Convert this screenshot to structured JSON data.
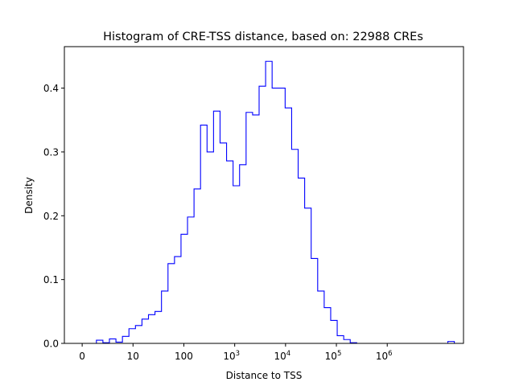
{
  "chart_data": {
    "type": "histogram",
    "title": "Histogram of CRE-TSS distance, based on: 22988 CREs",
    "xlabel": "Distance to TSS",
    "ylabel": "Density",
    "xlim": [
      -0.35,
      7.5
    ],
    "ylim": [
      0,
      0.465
    ],
    "x_scale": "log10(distance + 1)",
    "bin_width": 0.128,
    "bin_start": 0.28,
    "x_ticks": [
      {
        "value": 0,
        "label": "0"
      },
      {
        "value": 1,
        "label": "10"
      },
      {
        "value": 2,
        "label": "100"
      },
      {
        "value": 3,
        "label": "10",
        "exponent": "3"
      },
      {
        "value": 4,
        "label": "10",
        "exponent": "4"
      },
      {
        "value": 5,
        "label": "10",
        "exponent": "5"
      },
      {
        "value": 6,
        "label": "10",
        "exponent": "6"
      }
    ],
    "y_ticks": [
      0.0,
      0.1,
      0.2,
      0.3,
      0.4
    ],
    "y_tick_labels": [
      "0.0",
      "0.1",
      "0.2",
      "0.3",
      "0.4"
    ],
    "series_color": "#0000ff",
    "densities": [
      0.005,
      0.001,
      0.007,
      0.002,
      0.011,
      0.023,
      0.028,
      0.038,
      0.045,
      0.05,
      0.082,
      0.125,
      0.136,
      0.171,
      0.198,
      0.242,
      0.342,
      0.3,
      0.364,
      0.314,
      0.286,
      0.247,
      0.28,
      0.362,
      0.358,
      0.403,
      0.442,
      0.4,
      0.4,
      0.369,
      0.304,
      0.259,
      0.212,
      0.133,
      0.082,
      0.056,
      0.036,
      0.012,
      0.006,
      0.001,
      0.0,
      0.0,
      0.0,
      0.0,
      0.0,
      0.0,
      0.0,
      0.0,
      0.0,
      0.0,
      0.0,
      0.0,
      0.0,
      0.0,
      0.003
    ],
    "bins_note": ""
  }
}
